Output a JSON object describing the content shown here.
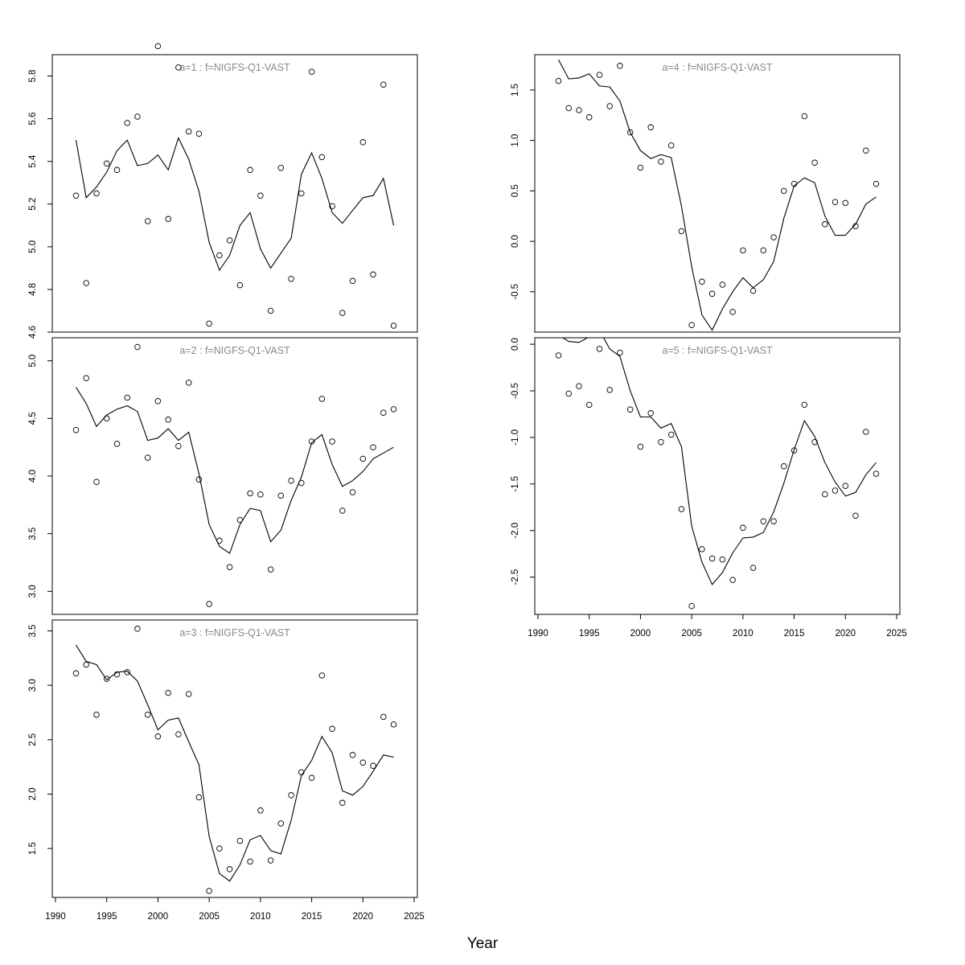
{
  "xlabel": "Year",
  "chart_data": [
    {
      "type": "line",
      "title": "a=1  :  f=NIGFS-Q1-VAST",
      "xlim": [
        1992,
        2023
      ],
      "ylim": [
        4.6,
        5.9
      ],
      "yticks": [
        "4.6",
        "4.8",
        "5.0",
        "5.2",
        "5.4",
        "5.6",
        "5.8"
      ],
      "xticks": [],
      "x": [
        1992,
        1993,
        1994,
        1995,
        1996,
        1997,
        1998,
        1999,
        2000,
        2001,
        2002,
        2003,
        2004,
        2005,
        2006,
        2007,
        2008,
        2009,
        2010,
        2011,
        2012,
        2013,
        2014,
        2015,
        2016,
        2017,
        2018,
        2019,
        2020,
        2021,
        2022,
        2023
      ],
      "series": [
        {
          "values": [
            5.5,
            5.23,
            5.28,
            5.35,
            5.45,
            5.5,
            5.38,
            5.39,
            5.43,
            5.36,
            5.51,
            5.41,
            5.26,
            5.02,
            4.89,
            4.96,
            5.1,
            5.16,
            4.99,
            4.9,
            4.97,
            5.04,
            5.34,
            5.44,
            5.32,
            5.16,
            5.11,
            5.17,
            5.23,
            5.24,
            5.32,
            5.1
          ]
        },
        {
          "values": [
            5.24,
            4.83,
            5.25,
            5.39,
            5.36,
            5.58,
            5.61,
            5.12,
            5.94,
            5.13,
            5.84,
            5.54,
            5.53,
            4.64,
            4.96,
            5.03,
            4.82,
            5.36,
            5.24,
            4.7,
            5.37,
            4.85,
            5.25,
            5.82,
            5.42,
            5.19,
            4.69,
            4.84,
            5.49,
            4.87,
            5.76,
            4.63
          ]
        }
      ]
    },
    {
      "type": "line",
      "title": "a=2  :  f=NIGFS-Q1-VAST",
      "xlim": [
        1992,
        2023
      ],
      "ylim": [
        2.8,
        5.2
      ],
      "yticks": [
        "3.0",
        "3.5",
        "4.0",
        "4.5",
        "5.0"
      ],
      "xticks": [],
      "x": [
        1992,
        1993,
        1994,
        1995,
        1996,
        1997,
        1998,
        1999,
        2000,
        2001,
        2002,
        2003,
        2004,
        2005,
        2006,
        2007,
        2008,
        2009,
        2010,
        2011,
        2012,
        2013,
        2014,
        2015,
        2016,
        2017,
        2018,
        2019,
        2020,
        2021,
        2022,
        2023
      ],
      "series": [
        {
          "values": [
            4.77,
            4.63,
            4.43,
            4.53,
            4.58,
            4.61,
            4.56,
            4.31,
            4.33,
            4.41,
            4.31,
            4.38,
            4.02,
            3.58,
            3.39,
            3.33,
            3.58,
            3.72,
            3.7,
            3.43,
            3.53,
            3.79,
            3.99,
            4.29,
            4.36,
            4.1,
            3.91,
            3.96,
            4.04,
            4.15,
            4.2,
            4.25
          ]
        },
        {
          "values": [
            4.4,
            4.85,
            3.95,
            4.5,
            4.28,
            4.68,
            5.12,
            4.16,
            4.65,
            4.49,
            4.26,
            4.81,
            3.97,
            2.89,
            3.44,
            3.21,
            3.62,
            3.85,
            3.84,
            3.19,
            3.83,
            3.96,
            3.94,
            4.3,
            4.67,
            4.3,
            3.7,
            3.86,
            4.15,
            4.25,
            4.55,
            4.58
          ]
        }
      ]
    },
    {
      "type": "line",
      "title": "a=3  :  f=NIGFS-Q1-VAST",
      "xlim": [
        1992,
        2023
      ],
      "ylim": [
        1.05,
        3.6
      ],
      "yticks": [
        "1.5",
        "2.0",
        "2.5",
        "3.0",
        "3.5"
      ],
      "xticks": [
        "1990",
        "1995",
        "2000",
        "2005",
        "2010",
        "2015",
        "2020",
        "2025"
      ],
      "x": [
        1992,
        1993,
        1994,
        1995,
        1996,
        1997,
        1998,
        1999,
        2000,
        2001,
        2002,
        2003,
        2004,
        2005,
        2006,
        2007,
        2008,
        2009,
        2010,
        2011,
        2012,
        2013,
        2014,
        2015,
        2016,
        2017,
        2018,
        2019,
        2020,
        2021,
        2022,
        2023
      ],
      "series": [
        {
          "values": [
            3.37,
            3.22,
            3.19,
            3.05,
            3.12,
            3.13,
            3.04,
            2.82,
            2.59,
            2.68,
            2.7,
            2.48,
            2.27,
            1.61,
            1.27,
            1.2,
            1.35,
            1.58,
            1.62,
            1.48,
            1.45,
            1.76,
            2.17,
            2.31,
            2.53,
            2.38,
            2.03,
            1.99,
            2.07,
            2.21,
            2.36,
            2.34
          ]
        },
        {
          "values": [
            3.11,
            3.19,
            2.73,
            3.06,
            3.1,
            3.12,
            3.52,
            2.73,
            2.53,
            2.93,
            2.55,
            2.92,
            1.97,
            1.11,
            1.5,
            1.31,
            1.57,
            1.38,
            1.85,
            1.39,
            1.73,
            1.99,
            2.2,
            2.15,
            3.09,
            2.6,
            1.92,
            2.36,
            2.29,
            2.26,
            2.71,
            2.64
          ]
        }
      ]
    },
    {
      "type": "line",
      "title": "a=4  :  f=NIGFS-Q1-VAST",
      "xlim": [
        1992,
        2023
      ],
      "ylim": [
        -0.9,
        1.85
      ],
      "yticks": [
        "-0.5",
        "0.0",
        "0.5",
        "1.0",
        "1.5"
      ],
      "xticks": [],
      "x": [
        1992,
        1993,
        1994,
        1995,
        1996,
        1997,
        1998,
        1999,
        2000,
        2001,
        2002,
        2003,
        2004,
        2005,
        2006,
        2007,
        2008,
        2009,
        2010,
        2011,
        2012,
        2013,
        2014,
        2015,
        2016,
        2017,
        2018,
        2019,
        2020,
        2021,
        2022,
        2023
      ],
      "series": [
        {
          "values": [
            1.8,
            1.61,
            1.62,
            1.66,
            1.54,
            1.53,
            1.39,
            1.08,
            0.9,
            0.82,
            0.86,
            0.83,
            0.35,
            -0.25,
            -0.73,
            -0.88,
            -0.67,
            -0.5,
            -0.36,
            -0.46,
            -0.38,
            -0.2,
            0.23,
            0.55,
            0.63,
            0.58,
            0.25,
            0.06,
            0.06,
            0.17,
            0.37,
            0.44
          ]
        },
        {
          "values": [
            1.59,
            1.32,
            1.3,
            1.23,
            1.65,
            1.34,
            1.74,
            1.08,
            0.73,
            1.13,
            0.79,
            0.95,
            0.1,
            -0.83,
            -0.4,
            -0.52,
            -0.43,
            -0.7,
            -0.09,
            -0.49,
            -0.09,
            0.04,
            0.5,
            0.57,
            1.24,
            0.78,
            0.17,
            0.39,
            0.38,
            0.15,
            0.9,
            0.57
          ]
        }
      ]
    },
    {
      "type": "line",
      "title": "a=5  :  f=NIGFS-Q1-VAST",
      "xlim": [
        1992,
        2023
      ],
      "ylim": [
        -2.9,
        0.07
      ],
      "yticks": [
        "-2.5",
        "-2.0",
        "-1.5",
        "-1.0",
        "-0.5",
        "0.0"
      ],
      "xticks": [
        "1990",
        "1995",
        "2000",
        "2005",
        "2010",
        "2015",
        "2020",
        "2025"
      ],
      "x": [
        1992,
        1993,
        1994,
        1995,
        1996,
        1997,
        1998,
        1999,
        2000,
        2001,
        2002,
        2003,
        2004,
        2005,
        2006,
        2007,
        2008,
        2009,
        2010,
        2011,
        2012,
        2013,
        2014,
        2015,
        2016,
        2017,
        2018,
        2019,
        2020,
        2021,
        2022,
        2023
      ],
      "series": [
        {
          "values": [
            0.1,
            0.03,
            0.02,
            0.08,
            0.15,
            -0.05,
            -0.13,
            -0.5,
            -0.78,
            -0.78,
            -0.9,
            -0.85,
            -1.1,
            -1.95,
            -2.34,
            -2.58,
            -2.45,
            -2.24,
            -2.08,
            -2.07,
            -2.02,
            -1.8,
            -1.49,
            -1.13,
            -0.82,
            -0.99,
            -1.27,
            -1.48,
            -1.63,
            -1.59,
            -1.4,
            -1.27
          ]
        },
        {
          "values": [
            -0.12,
            -0.53,
            -0.45,
            -0.65,
            -0.05,
            -0.49,
            -0.09,
            -0.7,
            -1.1,
            -0.74,
            -1.05,
            -0.97,
            -1.77,
            -2.81,
            -2.2,
            -2.3,
            -2.31,
            -2.53,
            -1.97,
            -2.4,
            -1.9,
            -1.9,
            -1.31,
            -1.14,
            -0.65,
            -1.05,
            -1.61,
            -1.57,
            -1.52,
            -1.84,
            -0.94,
            -1.39
          ]
        }
      ]
    }
  ]
}
